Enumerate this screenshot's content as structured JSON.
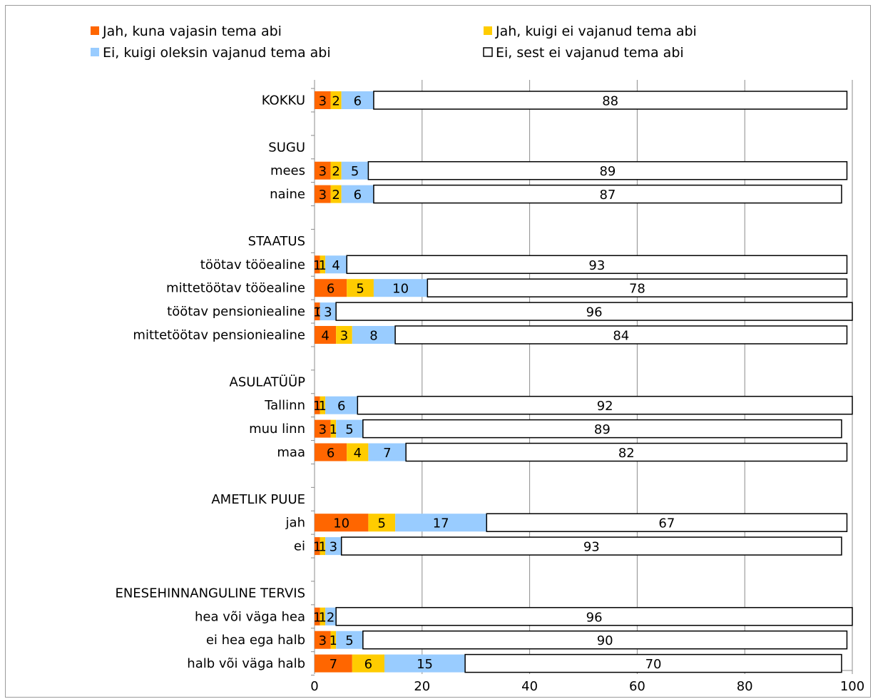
{
  "chart_data": {
    "type": "bar",
    "orientation": "horizontal",
    "stacked": true,
    "grid": true,
    "legend_position": "top",
    "xlim": [
      0,
      100
    ],
    "x_ticks": [
      "0",
      "20",
      "40",
      "60",
      "80",
      "100"
    ],
    "series": [
      {
        "name": "Jah, kuna vajasin tema abi",
        "color": "#ff6600"
      },
      {
        "name": "Jah, kuigi ei vajanud tema abi",
        "color": "#ffcc00"
      },
      {
        "name": "Ei, kuigi oleksin vajanud tema abi",
        "color": "#99ccff"
      },
      {
        "name": "Ei, sest ei vajanud tema abi",
        "color": "#ffffff"
      }
    ],
    "rows": [
      {
        "label": "KOKKU",
        "values": [
          3,
          2,
          6,
          88
        ]
      },
      {
        "label": "",
        "values": null
      },
      {
        "label": "SUGU",
        "values": null
      },
      {
        "label": "mees",
        "values": [
          3,
          2,
          5,
          89
        ]
      },
      {
        "label": "naine",
        "values": [
          3,
          2,
          6,
          87
        ]
      },
      {
        "label": "",
        "values": null
      },
      {
        "label": "STAATUS",
        "values": null
      },
      {
        "label": "töötav tööealine",
        "values": [
          1,
          1,
          4,
          93
        ]
      },
      {
        "label": "mittetöötav tööealine",
        "values": [
          6,
          5,
          10,
          78
        ]
      },
      {
        "label": "töötav pensioniealine",
        "values": [
          1,
          0,
          3,
          96
        ]
      },
      {
        "label": "mittetöötav pensioniealine",
        "values": [
          4,
          3,
          8,
          84
        ]
      },
      {
        "label": "",
        "values": null
      },
      {
        "label": "ASULATÜÜP",
        "values": null
      },
      {
        "label": "Tallinn",
        "values": [
          1,
          1,
          6,
          92
        ]
      },
      {
        "label": "muu linn",
        "values": [
          3,
          1,
          5,
          89
        ]
      },
      {
        "label": "maa",
        "values": [
          6,
          4,
          7,
          82
        ]
      },
      {
        "label": "",
        "values": null
      },
      {
        "label": "AMETLIK PUUE",
        "values": null
      },
      {
        "label": "jah",
        "values": [
          10,
          5,
          17,
          67
        ]
      },
      {
        "label": "ei",
        "values": [
          1,
          1,
          3,
          93
        ]
      },
      {
        "label": "",
        "values": null
      },
      {
        "label": "ENESEHINNANGULINE TERVIS",
        "values": null
      },
      {
        "label": "hea või väga hea",
        "values": [
          1,
          1,
          2,
          96
        ]
      },
      {
        "label": "ei hea ega halb",
        "values": [
          3,
          1,
          5,
          90
        ]
      },
      {
        "label": "halb või väga halb",
        "values": [
          7,
          6,
          15,
          70
        ]
      }
    ]
  }
}
